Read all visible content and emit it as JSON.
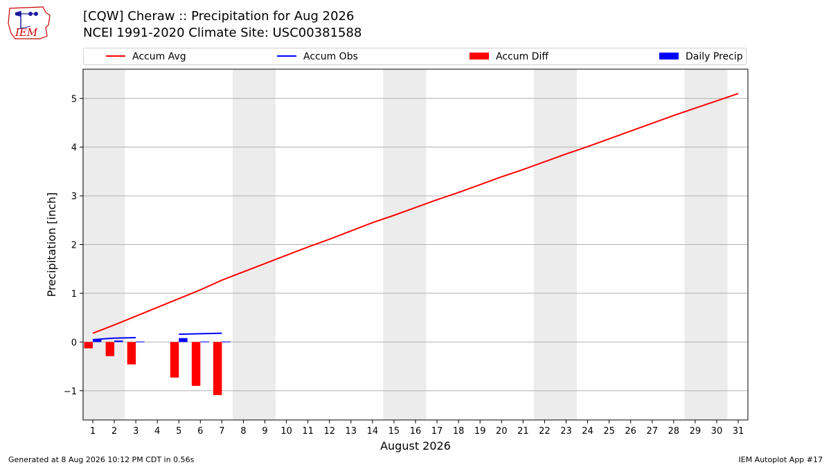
{
  "header": {
    "title_line1": "[CQW] Cheraw :: Precipitation for Aug 2026",
    "title_line2": "NCEI 1991-2020 Climate Site: USC00381588"
  },
  "logo": {
    "text": "IEM"
  },
  "legend": {
    "items": [
      {
        "label": "Accum Avg",
        "kind": "line",
        "color": "#ff0000"
      },
      {
        "label": "Accum Obs",
        "kind": "line",
        "color": "#0000ff"
      },
      {
        "label": "Accum Diff",
        "kind": "box",
        "color": "#ff0000"
      },
      {
        "label": "Daily Precip",
        "kind": "box",
        "color": "#0000ff"
      }
    ]
  },
  "footer": {
    "left": "Generated at 8 Aug 2026 10:12 PM CDT in 0.56s",
    "right": "IEM Autoplot App #17"
  },
  "chart_data": {
    "type": "bar",
    "title": "[CQW] Cheraw :: Precipitation for Aug 2026",
    "xlabel": "August 2026",
    "ylabel": "Precipitation [inch]",
    "xlim": [
      0.55,
      31.45
    ],
    "ylim": [
      -1.6,
      5.6
    ],
    "grid": true,
    "legend_position": "top",
    "x_ticks": [
      1,
      2,
      3,
      4,
      5,
      6,
      7,
      8,
      9,
      10,
      11,
      12,
      13,
      14,
      15,
      16,
      17,
      18,
      19,
      20,
      21,
      22,
      23,
      24,
      25,
      26,
      27,
      28,
      29,
      30,
      31
    ],
    "y_ticks": [
      -1,
      0,
      1,
      2,
      3,
      4,
      5
    ],
    "y_tick_labels": [
      "−1",
      "0",
      "1",
      "2",
      "3",
      "4",
      "5"
    ],
    "weekend_shading": [
      [
        0.5,
        2.5
      ],
      [
        7.5,
        9.5
      ],
      [
        14.5,
        16.5
      ],
      [
        21.5,
        23.5
      ],
      [
        28.5,
        30.5
      ]
    ],
    "series": [
      {
        "name": "Accum Avg",
        "kind": "line",
        "color": "#ff0000",
        "x": [
          1,
          2,
          3,
          4,
          5,
          6,
          7,
          8,
          9,
          10,
          11,
          12,
          13,
          14,
          15,
          16,
          17,
          18,
          19,
          20,
          21,
          22,
          23,
          24,
          25,
          26,
          27,
          28,
          29,
          30,
          31
        ],
        "values": [
          0.18,
          0.35,
          0.53,
          0.71,
          0.89,
          1.07,
          1.27,
          1.44,
          1.61,
          1.78,
          1.95,
          2.11,
          2.28,
          2.45,
          2.6,
          2.76,
          2.92,
          3.07,
          3.23,
          3.39,
          3.54,
          3.7,
          3.86,
          4.01,
          4.17,
          4.33,
          4.49,
          4.65,
          4.8,
          4.95,
          5.1
        ]
      },
      {
        "name": "Accum Obs",
        "kind": "step_line",
        "color": "#0000ff",
        "segments": [
          {
            "x": [
              1,
              2,
              3
            ],
            "values": [
              0.05,
              0.08,
              0.09
            ]
          },
          {
            "x": [
              5,
              6,
              7
            ],
            "values": [
              0.16,
              0.17,
              0.18
            ]
          }
        ]
      },
      {
        "name": "Accum Diff",
        "kind": "bar",
        "color": "#ff0000",
        "x": [
          1,
          2,
          3,
          5,
          6,
          7
        ],
        "values": [
          -0.13,
          -0.29,
          -0.46,
          -0.73,
          -0.9,
          -1.09
        ]
      },
      {
        "name": "Daily Precip",
        "kind": "bar",
        "color": "#0000ff",
        "x": [
          1,
          2,
          3,
          5,
          6,
          7
        ],
        "values": [
          0.05,
          0.03,
          0.01,
          0.08,
          0.01,
          0.01
        ]
      }
    ]
  }
}
